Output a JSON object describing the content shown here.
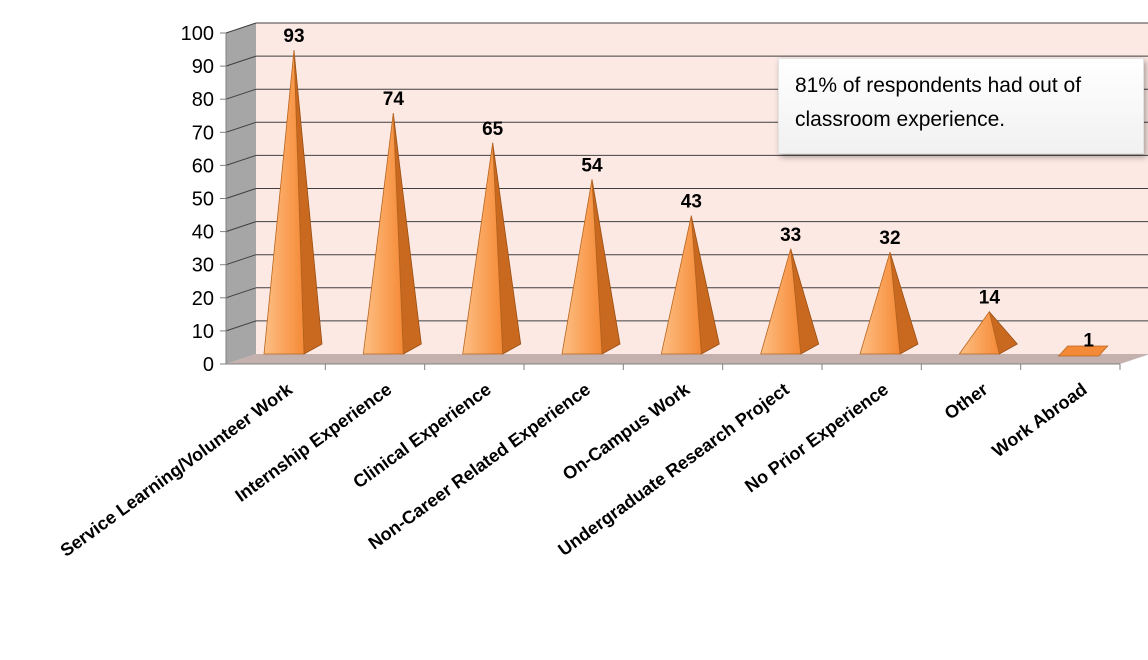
{
  "chart_data": {
    "type": "bar",
    "style": "3d-pyramid",
    "categories": [
      "Service Learning/Volunteer Work",
      "Internship Experience",
      "Clinical Experience",
      "Non-Career Related Experience",
      "On-Campus Work",
      "Undergraduate Research Project",
      "No Prior Experience",
      "Other",
      "Work Abroad"
    ],
    "values": [
      93,
      74,
      65,
      54,
      43,
      33,
      32,
      14,
      1
    ],
    "ylim": [
      0,
      100
    ],
    "yticks": [
      "0",
      "10",
      "20",
      "30",
      "40",
      "50",
      "60",
      "70",
      "80",
      "90",
      "100"
    ],
    "grid": true,
    "legend": "none",
    "annotation": "81% of respondents had out of classroom experience.",
    "colors": {
      "bar": "#f79646",
      "wall": "#fde9e4",
      "floor": "#c4b0ad",
      "side_wall": "#a6a6a6",
      "grid": "#404040"
    }
  }
}
